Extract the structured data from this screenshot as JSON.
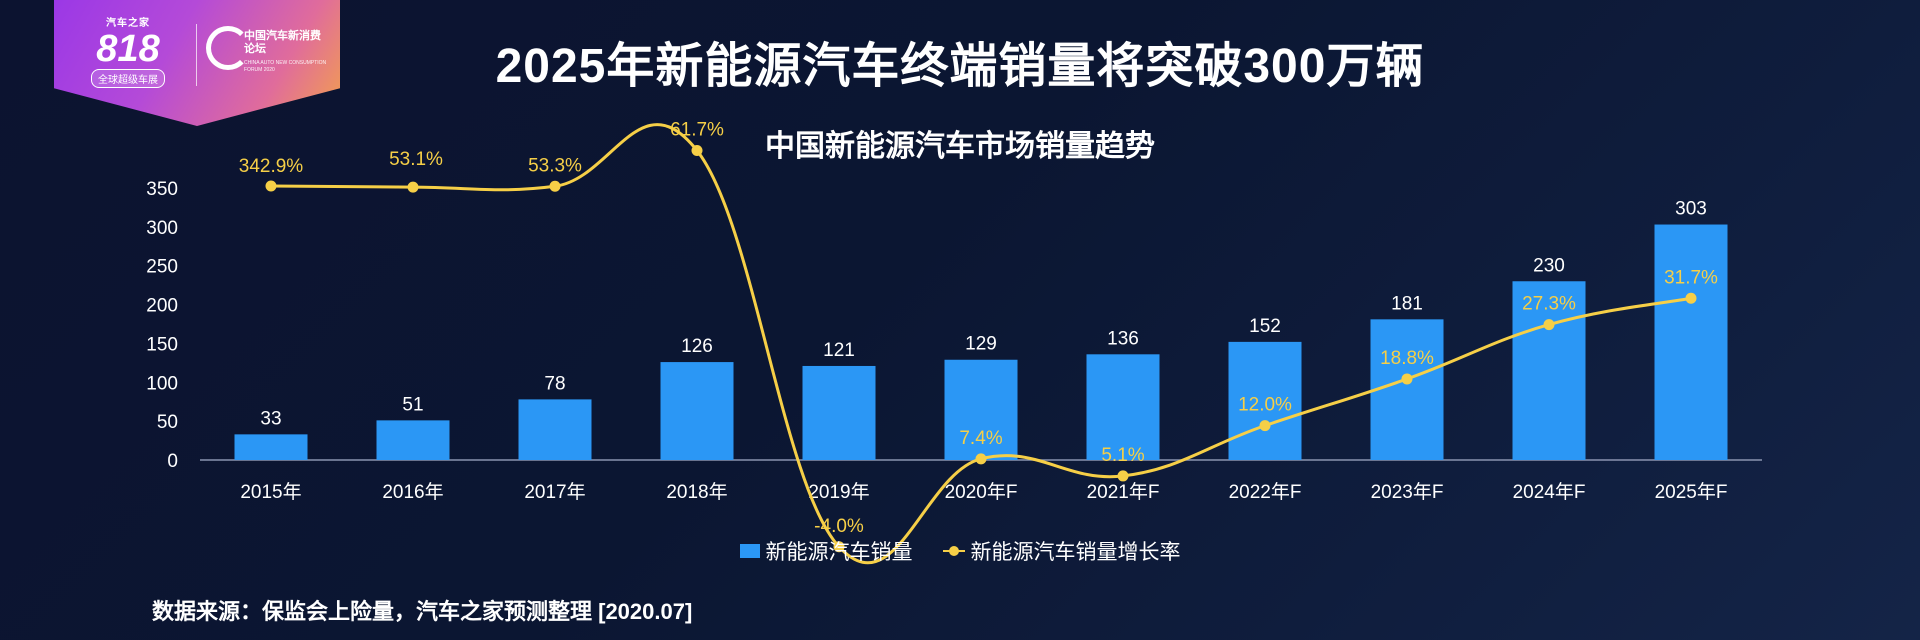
{
  "badge": {
    "logo_top": "汽车之家",
    "logo_number": "818",
    "logo_sub": "全球超级车展",
    "forum_title": "中国汽车新消费论坛",
    "forum_en": "CHINA AUTO NEW CONSUMPTION FORUM 2020"
  },
  "page_title": "2025年新能源汽车终端销量将突破300万辆",
  "source_note": "数据来源：保监会上险量，汽车之家预测整理 [2020.07]",
  "colors": {
    "bar": "#2b97f5",
    "line": "#f6cf47",
    "background": "#0c1330"
  },
  "chart_data": {
    "type": "bar",
    "title": "中国新能源汽车市场销量趋势",
    "categories": [
      "2015年",
      "2016年",
      "2017年",
      "2018年",
      "2019年",
      "2020年F",
      "2021年F",
      "2022年F",
      "2023年F",
      "2024年F",
      "2025年F"
    ],
    "series": [
      {
        "name": "新能源汽车销量",
        "type": "bar",
        "values": [
          33,
          51,
          78,
          126,
          121,
          129,
          136,
          152,
          181,
          230,
          303
        ]
      },
      {
        "name": "新能源汽车销量增长率",
        "type": "line",
        "values": [
          342.9,
          53.1,
          53.3,
          61.7,
          -4.0,
          7.4,
          5.1,
          12.0,
          18.8,
          27.3,
          31.7
        ],
        "labels": [
          "342.9%",
          "53.1%",
          "53.3%",
          "61.7%",
          "-4.0%",
          "7.4%",
          "5.1%",
          "12.0%",
          "18.8%",
          "27.3%",
          "31.7%"
        ]
      }
    ],
    "yticks": [
      0,
      50,
      100,
      150,
      200,
      250,
      300,
      350
    ],
    "ylim": [
      0,
      350
    ],
    "grid": false,
    "legend_position": "bottom"
  }
}
